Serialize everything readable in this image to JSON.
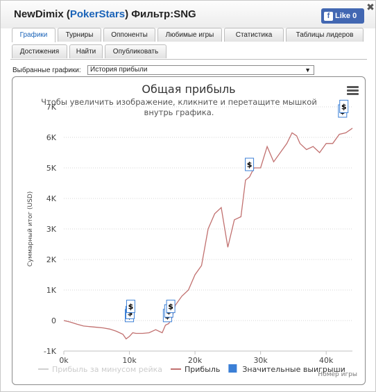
{
  "window": {
    "title_prefix": "NewDimix (",
    "title_link": "PokerStars",
    "title_suffix": ") Фильтр:SNG",
    "like_label": "Like 0",
    "close_label": "✖"
  },
  "tabs": [
    {
      "label": "Графики",
      "active": true
    },
    {
      "label": "Турниры",
      "active": false
    },
    {
      "label": "Оппоненты",
      "active": false
    },
    {
      "label": "Любимые игры",
      "active": false
    },
    {
      "label": "Статистика",
      "active": false
    },
    {
      "label": "Таблицы лидеров",
      "active": false
    },
    {
      "label": "Достижения",
      "active": false
    },
    {
      "label": "Найти",
      "active": false
    },
    {
      "label": "Опубликовать",
      "active": false
    }
  ],
  "selector": {
    "label": "Выбранные графики:",
    "value": "История прибыли"
  },
  "chart_data": {
    "type": "line",
    "title": "Общая прибыль",
    "subtitle": "Чтобы увеличить изображение, кликните и перетащите мышкой внутрь графика.",
    "ylabel": "Суммарный итог (USD)",
    "xlabel": "Номер игры",
    "ylim": [
      -1000,
      7000
    ],
    "xlim": [
      0,
      44000
    ],
    "y_ticks": [
      {
        "v": -1000,
        "label": "-1K"
      },
      {
        "v": 0,
        "label": "0"
      },
      {
        "v": 1000,
        "label": "1K"
      },
      {
        "v": 2000,
        "label": "2K"
      },
      {
        "v": 3000,
        "label": "3K"
      },
      {
        "v": 4000,
        "label": "4K"
      },
      {
        "v": 5000,
        "label": "5K"
      },
      {
        "v": 6000,
        "label": "6K"
      },
      {
        "v": 7000,
        "label": "7K"
      }
    ],
    "x_ticks": [
      {
        "v": 0,
        "label": "0k"
      },
      {
        "v": 10000,
        "label": "10k"
      },
      {
        "v": 20000,
        "label": "20k"
      },
      {
        "v": 30000,
        "label": "30k"
      },
      {
        "v": 40000,
        "label": "40k"
      }
    ],
    "grid": true,
    "legend_position": "bottom",
    "legend": [
      {
        "name": "Прибыль за минусом рейка",
        "color": "#d0d0d0",
        "kind": "line",
        "hidden": true
      },
      {
        "name": "Прибыль",
        "color": "#c1706f",
        "kind": "line",
        "hidden": false
      },
      {
        "name": "Значительные выигрыши",
        "color": "#3b7fd6",
        "kind": "box",
        "hidden": false
      }
    ],
    "series": [
      {
        "name": "Прибыль",
        "color": "#c1706f",
        "x": [
          0,
          1000,
          2000,
          3000,
          4000,
          5000,
          6000,
          7000,
          8000,
          9000,
          9500,
          10000,
          10500,
          11000,
          12000,
          13000,
          14000,
          15000,
          15500,
          16000,
          16500,
          17000,
          18000,
          19000,
          20000,
          21000,
          22000,
          23000,
          24000,
          25000,
          26000,
          27000,
          27700,
          28000,
          28300,
          29000,
          30000,
          31000,
          32000,
          33000,
          34000,
          34800,
          35500,
          36000,
          37000,
          38000,
          39000,
          40000,
          41000,
          42000,
          43000,
          44000
        ],
        "y": [
          0,
          -50,
          -120,
          -180,
          -200,
          -220,
          -240,
          -280,
          -350,
          -450,
          -600,
          -520,
          -400,
          -420,
          -420,
          -400,
          -300,
          -400,
          -150,
          -100,
          100,
          500,
          800,
          1000,
          1500,
          1800,
          3000,
          3500,
          3700,
          2400,
          3300,
          3400,
          4600,
          4650,
          4700,
          5000,
          5000,
          5700,
          5200,
          5500,
          5800,
          6150,
          6050,
          5800,
          5600,
          5700,
          5500,
          5800,
          5800,
          6100,
          6150,
          6300
        ]
      }
    ],
    "big_wins": [
      {
        "x": 10000,
        "y": -200
      },
      {
        "x": 10100,
        "y": -100
      },
      {
        "x": 10200,
        "y": 100
      },
      {
        "x": 15800,
        "y": -200
      },
      {
        "x": 16000,
        "y": -50
      },
      {
        "x": 16300,
        "y": 100
      },
      {
        "x": 28300,
        "y": 4750
      },
      {
        "x": 42500,
        "y": 6500
      },
      {
        "x": 42700,
        "y": 6650
      }
    ]
  }
}
